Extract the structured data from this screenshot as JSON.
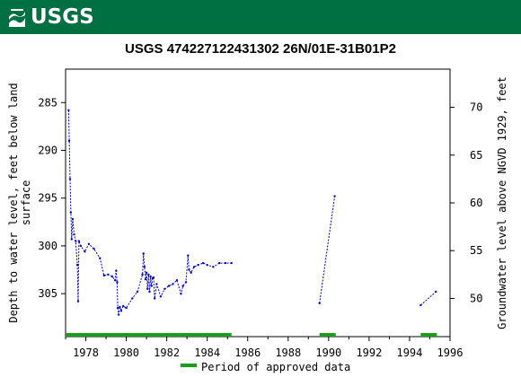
{
  "header": {
    "logo_text": "USGS"
  },
  "chart_data": {
    "type": "scatter",
    "title": "USGS 474227122431302 26N/01E-31B01P2",
    "ylabel_left": [
      "Depth to water level, feet below land",
      "surface"
    ],
    "ylabel_right": "Groundwater level above NGVD 1929, feet",
    "xlim": [
      1977.0,
      1996.0
    ],
    "ylim_left": [
      309.5,
      281.5
    ],
    "ylim_right": [
      46.0,
      74.0
    ],
    "x_ticks": [
      1978,
      1980,
      1982,
      1984,
      1986,
      1988,
      1990,
      1992,
      1994,
      1996
    ],
    "y_ticks_left": [
      285,
      290,
      295,
      300,
      305
    ],
    "y_ticks_right": [
      70,
      65,
      60,
      55,
      50
    ],
    "series": [
      {
        "name": "",
        "color": "#0000cc",
        "segments": [
          [
            [
              1977.15,
              285.8
            ],
            [
              1977.18,
              289.0
            ],
            [
              1977.22,
              293.0
            ],
            [
              1977.26,
              296.5
            ],
            [
              1977.3,
              299.3
            ],
            [
              1977.35,
              297.2
            ],
            [
              1977.42,
              298.8
            ],
            [
              1977.5,
              299.5
            ],
            [
              1977.58,
              302.0
            ],
            [
              1977.62,
              305.8
            ],
            [
              1977.66,
              299.5
            ],
            [
              1977.75,
              300.0
            ],
            [
              1977.95,
              300.6
            ],
            [
              1978.15,
              299.8
            ],
            [
              1978.4,
              300.3
            ],
            [
              1978.7,
              301.3
            ],
            [
              1978.9,
              303.1
            ],
            [
              1979.1,
              303.0
            ],
            [
              1979.3,
              303.2
            ],
            [
              1979.45,
              303.6
            ],
            [
              1979.5,
              302.6
            ],
            [
              1979.55,
              303.8
            ],
            [
              1979.58,
              306.5
            ],
            [
              1979.62,
              307.2
            ],
            [
              1979.68,
              306.4
            ],
            [
              1979.75,
              306.8
            ],
            [
              1979.85,
              306.3
            ],
            [
              1980.0,
              306.5
            ],
            [
              1980.3,
              305.5
            ],
            [
              1980.55,
              304.8
            ],
            [
              1980.8,
              303.0
            ],
            [
              1980.85,
              300.8
            ],
            [
              1980.9,
              302.2
            ],
            [
              1980.95,
              303.5
            ],
            [
              1981.0,
              302.8
            ],
            [
              1981.05,
              304.5
            ],
            [
              1981.1,
              303.0
            ],
            [
              1981.15,
              304.8
            ],
            [
              1981.2,
              303.2
            ],
            [
              1981.25,
              304.2
            ],
            [
              1981.3,
              303.4
            ],
            [
              1981.35,
              303.3
            ],
            [
              1981.4,
              305.5
            ],
            [
              1981.5,
              304.0
            ],
            [
              1981.7,
              305.3
            ],
            [
              1981.9,
              304.5
            ],
            [
              1982.1,
              304.2
            ],
            [
              1982.3,
              304.0
            ],
            [
              1982.5,
              303.6
            ],
            [
              1982.7,
              305.0
            ],
            [
              1982.8,
              304.2
            ],
            [
              1982.95,
              303.8
            ],
            [
              1983.05,
              301.0
            ],
            [
              1983.1,
              302.5
            ],
            [
              1983.2,
              302.8
            ],
            [
              1983.35,
              302.2
            ],
            [
              1983.55,
              302.0
            ],
            [
              1983.8,
              301.8
            ],
            [
              1984.0,
              302.0
            ],
            [
              1984.3,
              302.2
            ],
            [
              1984.6,
              301.8
            ],
            [
              1984.9,
              301.8
            ],
            [
              1985.2,
              301.8
            ]
          ],
          [
            [
              1989.55,
              306.0
            ],
            [
              1990.3,
              294.8
            ]
          ],
          [
            [
              1994.55,
              306.2
            ],
            [
              1995.3,
              304.8
            ]
          ]
        ]
      }
    ],
    "approved_periods": [
      [
        1977.0,
        1985.2
      ],
      [
        1989.55,
        1990.35
      ],
      [
        1994.55,
        1995.35
      ]
    ],
    "approved_color": "#1a9e1a",
    "legend": {
      "label": "Period of approved data",
      "placement": "bottom-center"
    }
  }
}
